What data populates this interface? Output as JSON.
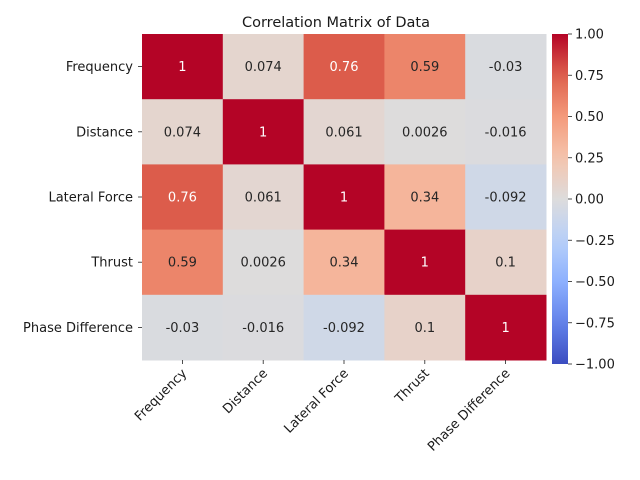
{
  "chart_data": {
    "type": "heatmap",
    "title": "Correlation Matrix of Data",
    "row_labels": [
      "Frequency",
      "Distance",
      "Lateral Force",
      "Thrust",
      "Phase Difference"
    ],
    "col_labels": [
      "Frequency",
      "Distance",
      "Lateral Force",
      "Thrust",
      "Phase Difference"
    ],
    "values": [
      [
        1,
        0.074,
        0.76,
        0.59,
        -0.03
      ],
      [
        0.074,
        1,
        0.061,
        0.0026,
        -0.016
      ],
      [
        0.76,
        0.061,
        1,
        0.34,
        -0.092
      ],
      [
        0.59,
        0.0026,
        0.34,
        1,
        0.1
      ],
      [
        -0.03,
        -0.016,
        -0.092,
        0.1,
        1
      ]
    ],
    "cell_labels": [
      [
        "1",
        "0.074",
        "0.76",
        "0.59",
        "-0.03"
      ],
      [
        "0.074",
        "1",
        "0.061",
        "0.0026",
        "-0.016"
      ],
      [
        "0.76",
        "0.061",
        "1",
        "0.34",
        "-0.092"
      ],
      [
        "0.59",
        "0.0026",
        "0.34",
        "1",
        "0.1"
      ],
      [
        "-0.03",
        "-0.016",
        "-0.092",
        "0.1",
        "1"
      ]
    ],
    "colormap": "coolwarm",
    "vmin": -1,
    "vmax": 1,
    "colorbar_ticks": [
      1.0,
      0.75,
      0.5,
      0.25,
      0.0,
      -0.25,
      -0.5,
      -0.75,
      -1.0
    ],
    "colorbar_tick_labels": [
      "1.00",
      "0.75",
      "0.50",
      "0.25",
      "0.00",
      "−0.25",
      "−0.50",
      "−0.75",
      "−1.00"
    ]
  }
}
